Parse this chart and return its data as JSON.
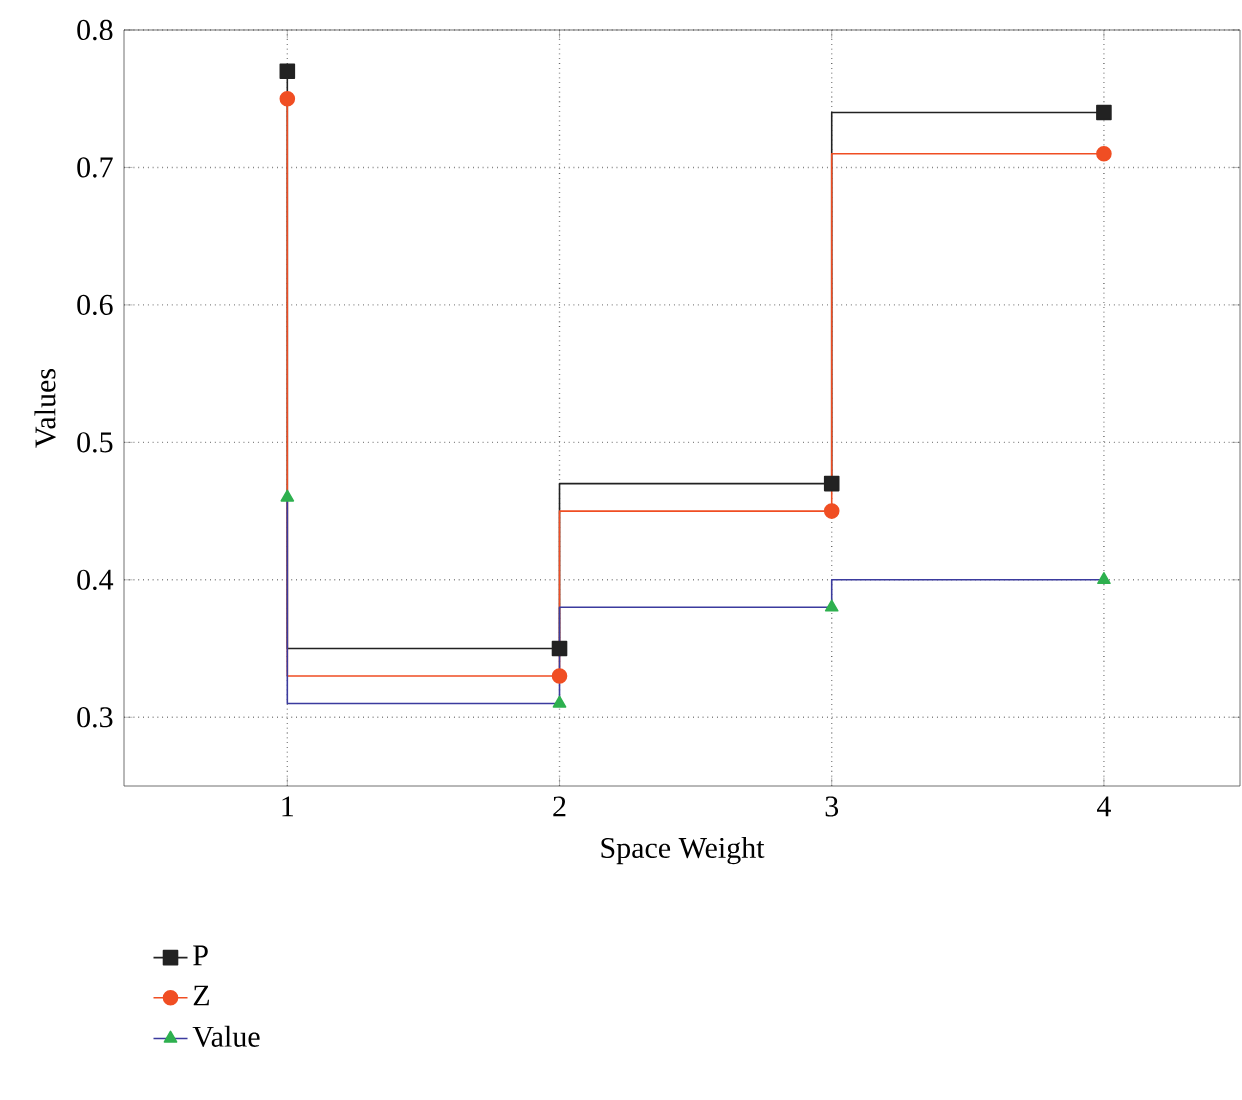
{
  "chart_data": {
    "type": "step",
    "xlabel": "Space Weight",
    "ylabel": "Values",
    "x": [
      1,
      2,
      3,
      4
    ],
    "xlim": [
      0.4,
      4.5
    ],
    "xticks": [
      1,
      2,
      3,
      4
    ],
    "ylim": [
      0.25,
      0.8
    ],
    "yticks": [
      0.3,
      0.4,
      0.5,
      0.6,
      0.7,
      0.8
    ],
    "grid": true,
    "legend": "bottom left",
    "series": [
      {
        "name": "P",
        "color": "#222222",
        "marker": "square",
        "values": [
          0.77,
          0.35,
          0.47,
          0.74
        ]
      },
      {
        "name": "Z",
        "color": "#f04e23",
        "marker": "circle",
        "values": [
          0.75,
          0.33,
          0.45,
          0.71
        ]
      },
      {
        "name": "Value",
        "color": "#3b3b9e",
        "marker": "triangle",
        "colors": [
          "#2eb04f",
          "#2eb04f",
          "#2eb04f",
          "#2eb04f"
        ],
        "values": [
          0.46,
          0.31,
          0.38,
          0.4
        ]
      }
    ]
  }
}
